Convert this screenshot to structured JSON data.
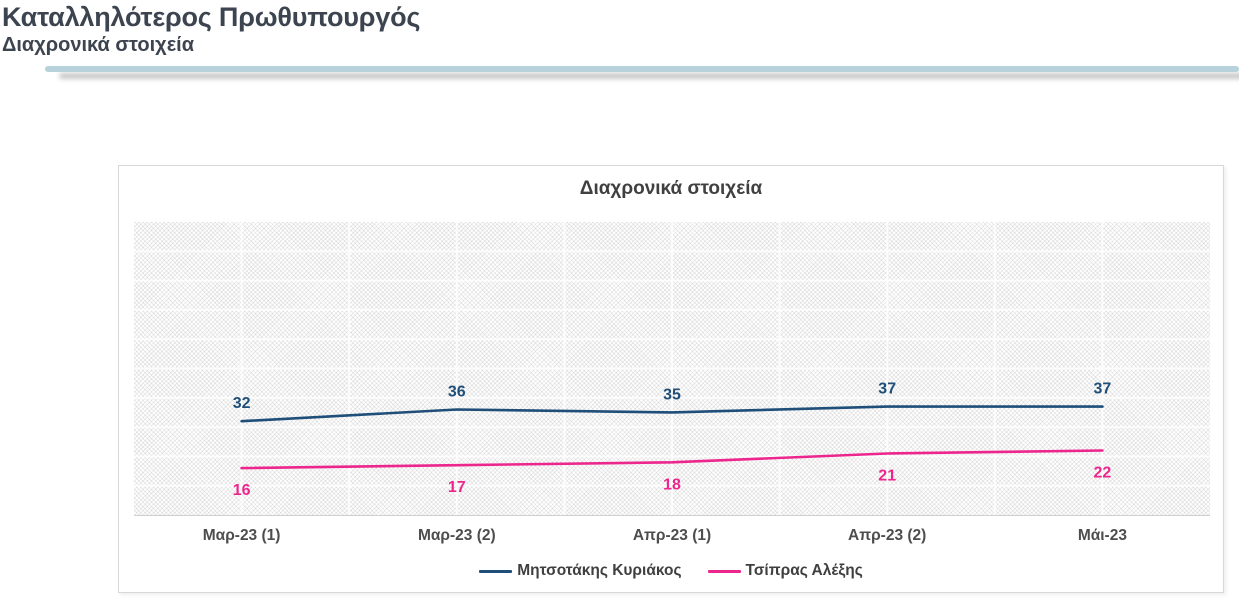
{
  "page": {
    "title": "Καταλληλότερος Πρωθυπουργός",
    "subtitle": "Διαχρονικά στοιχεία",
    "divider_color": "#B7D2DA"
  },
  "chart_data": {
    "type": "line",
    "title": "Διαχρονικά στοιχεία",
    "categories": [
      "Μαρ-23 (1)",
      "Μαρ-23 (2)",
      "Απρ-23 (1)",
      "Απρ-23 (2)",
      "Μάι-23"
    ],
    "series": [
      {
        "name": "Μητσοτάκης Κυριάκος",
        "color": "#1F4E79",
        "values": [
          32,
          36,
          35,
          37,
          37
        ],
        "label_position": "above"
      },
      {
        "name": "Τσίπρας Αλέξης",
        "color": "#EC268D",
        "values": [
          16,
          17,
          18,
          21,
          22
        ],
        "label_position": "below"
      }
    ],
    "xlabel": "",
    "ylabel": "",
    "ylim": [
      0,
      100
    ],
    "grid": {
      "on": true,
      "h_divisions": 10,
      "v_divisions": 10,
      "grid_color": "#FFFFFF"
    },
    "plot_background": "hatched-light-gray",
    "legend_position": "bottom",
    "data_labels": true
  }
}
